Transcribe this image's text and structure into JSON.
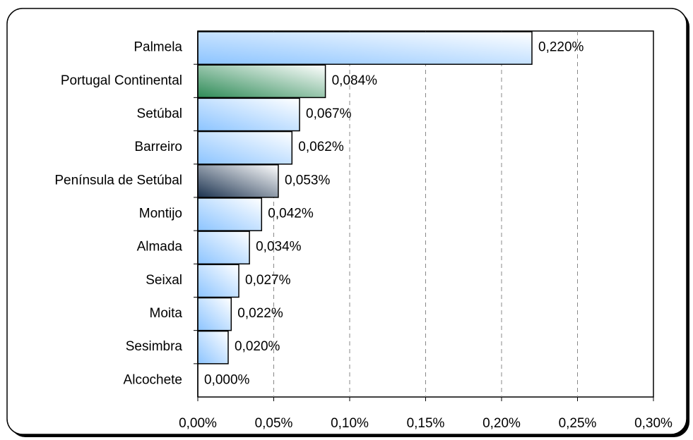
{
  "chart_data": {
    "type": "hbar",
    "categories": [
      "Palmela",
      "Portugal Continental",
      "Setúbal",
      "Barreiro",
      "Península de Setúbal",
      "Montijo",
      "Almada",
      "Seixal",
      "Moita",
      "Sesimbra",
      "Alcochete"
    ],
    "values": [
      0.22,
      0.084,
      0.067,
      0.062,
      0.053,
      0.042,
      0.034,
      0.027,
      0.022,
      0.02,
      0
    ],
    "value_labels": [
      "0,220%",
      "0,084%",
      "0,067%",
      "0,062%",
      "0,053%",
      "0,042%",
      "0,034%",
      "0,027%",
      "0,022%",
      "0,020%",
      "0,000%"
    ],
    "colors": [
      "#8cc4ff",
      "#2e8b57",
      "#8cc4ff",
      "#8cc4ff",
      "#1c3350",
      "#8cc4ff",
      "#8cc4ff",
      "#8cc4ff",
      "#8cc4ff",
      "#8cc4ff",
      "#8cc4ff"
    ],
    "label_colors": [
      "#333399",
      "#339966",
      "#333399",
      "#333399",
      "#333399",
      "#333399",
      "#333399",
      "#333399",
      "#333399",
      "#333399",
      "#333399"
    ],
    "xlim": [
      0,
      0.3
    ],
    "xticks": [
      {
        "value": 0,
        "label": "0,00%"
      },
      {
        "value": 0.05,
        "label": "0,05%"
      },
      {
        "value": 0.1,
        "label": "0,10%"
      },
      {
        "value": 0.15,
        "label": "0,15%"
      },
      {
        "value": 0.2,
        "label": "0,20%"
      },
      {
        "value": 0.25,
        "label": "0,25%"
      },
      {
        "value": 0.3,
        "label": "0,30%"
      }
    ],
    "grid": true
  }
}
